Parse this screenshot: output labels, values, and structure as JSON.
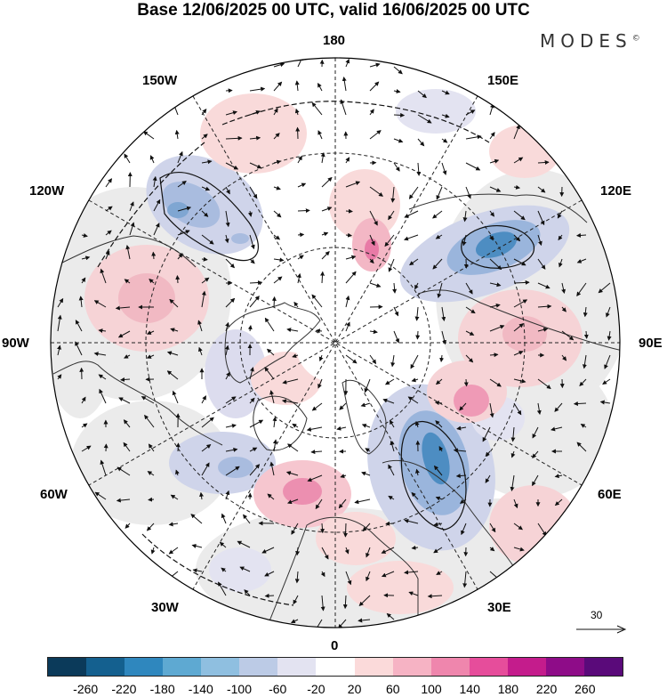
{
  "title": "Base 12/06/2025 00 UTC, valid 16/06/2025 00 UTC",
  "brand": "MODES",
  "brand_mark": "©",
  "longitude_labels": {
    "n180": "180",
    "e150": "150E",
    "e120": "120E",
    "e90": "90E",
    "e60": "60E",
    "e30": "30E",
    "zero": "0",
    "w30": "30W",
    "w60": "60W",
    "w90": "90W",
    "w120": "120W",
    "w150": "150W"
  },
  "reference_vector_label": "30",
  "colorbar": {
    "colors": [
      "#0b3a5a",
      "#14608f",
      "#2f87be",
      "#5ea9d2",
      "#8fbfe0",
      "#bccbe6",
      "#e3e3f1",
      "#ffffff",
      "#fbdada",
      "#f6b3c4",
      "#ef86ad",
      "#e64d9b",
      "#c41c8c",
      "#8e0c88",
      "#5a0a7a"
    ],
    "ticks": [
      "-260",
      "-220",
      "-180",
      "-140",
      "-100",
      "-60",
      "-20",
      "20",
      "60",
      "100",
      "140",
      "180",
      "220",
      "260"
    ]
  },
  "colors": {
    "neutral_band": "#e8e8e8",
    "land_outline": "#333333",
    "vector": "#111111"
  }
}
